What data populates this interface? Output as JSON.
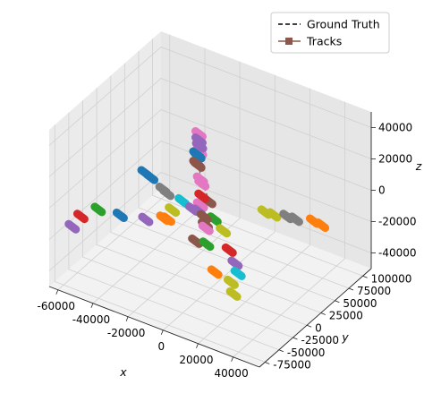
{
  "chart_data": {
    "type": "line",
    "projection": "3d",
    "xlabel": "x",
    "ylabel": "y",
    "zlabel": "z",
    "xlim": [
      -65000,
      55000
    ],
    "ylim": [
      -85000,
      115000
    ],
    "zlim": [
      -50000,
      50000
    ],
    "xticks": [
      "-60000",
      "-40000",
      "-20000",
      "0",
      "20000",
      "40000"
    ],
    "yticks": [
      "-75000",
      "-50000",
      "-25000",
      "0",
      "25000",
      "50000",
      "75000",
      "100000"
    ],
    "zticks": [
      "-40000",
      "-20000",
      "0",
      "20000",
      "40000"
    ],
    "grid": true,
    "legend": {
      "position": "top-right",
      "entries": [
        {
          "label": "Ground Truth",
          "style": "dashed",
          "color": "#000000"
        },
        {
          "label": "Tracks",
          "style": "solid-square-marker",
          "color": "#8c564b"
        }
      ]
    },
    "series": [
      {
        "color": "#e377c2",
        "x": [
          -5000,
          -5000,
          -4800
        ],
        "y": [
          -5000,
          -4000,
          -3000
        ],
        "z": [
          48000,
          36000,
          2000
        ]
      },
      {
        "color": "#9467bd",
        "x": [
          -5000,
          -5000
        ],
        "y": [
          -5000,
          -4000
        ],
        "z": [
          44000,
          40000
        ]
      },
      {
        "color": "#1f77b4",
        "x": [
          -6000,
          -5500
        ],
        "y": [
          -6000,
          -5500
        ],
        "z": [
          35000,
          34000
        ]
      },
      {
        "color": "#8c564b",
        "x": [
          -6000,
          -5500,
          -1000
        ],
        "y": [
          -6000,
          -5500,
          0
        ],
        "z": [
          29000,
          28000,
          5000
        ]
      },
      {
        "color": "#e377c2",
        "x": [
          -4500,
          -4000
        ],
        "y": [
          -4000,
          -3000
        ],
        "z": [
          19000,
          16000
        ]
      },
      {
        "color": "#1f77b4",
        "x": [
          -33000,
          -30000
        ],
        "y": [
          -14000,
          -13000
        ],
        "z": [
          14000,
          12000
        ]
      },
      {
        "color": "#7f7f7f",
        "x": [
          -24000,
          -22000
        ],
        "y": [
          -10000,
          -9000
        ],
        "z": [
          6000,
          4000
        ]
      },
      {
        "color": "#bcbd22",
        "x": [
          24000,
          28000
        ],
        "y": [
          22000,
          25000
        ],
        "z": [
          2000,
          1000
        ]
      },
      {
        "color": "#7f7f7f",
        "x": [
          34000,
          38000
        ],
        "y": [
          30000,
          33000
        ],
        "z": [
          1000,
          0
        ]
      },
      {
        "color": "#ff7f0e",
        "x": [
          46000,
          50000
        ],
        "y": [
          40000,
          42000
        ],
        "z": [
          0,
          -1500
        ]
      },
      {
        "color": "#d62728",
        "x": [
          -4000
        ],
        "y": [
          -3000
        ],
        "z": [
          8000
        ]
      },
      {
        "color": "#17becf",
        "x": [
          -14000
        ],
        "y": [
          -7000
        ],
        "z": [
          2000
        ]
      },
      {
        "color": "#9467bd",
        "x": [
          -9000,
          -6000
        ],
        "y": [
          -4000,
          -3000
        ],
        "z": [
          -2000,
          -2500
        ]
      },
      {
        "color": "#2ca02c",
        "x": [
          2000
        ],
        "y": [
          0
        ],
        "z": [
          -5000
        ]
      },
      {
        "color": "#8c564b",
        "x": [
          -3000,
          -2500
        ],
        "y": [
          -2000,
          -1500
        ],
        "z": [
          -5000,
          -10000
        ]
      },
      {
        "color": "#bcbd22",
        "x": [
          -18000
        ],
        "y": [
          -12000
        ],
        "z": [
          -4000
        ]
      },
      {
        "color": "#ff7f0e",
        "x": [
          -22000,
          -20000
        ],
        "y": [
          -15000,
          -14000
        ],
        "z": [
          -10000,
          -10000
        ]
      },
      {
        "color": "#bcbd22",
        "x": [
          6000
        ],
        "y": [
          4000
        ],
        "z": [
          -12000
        ]
      },
      {
        "color": "#9467bd",
        "x": [
          -30000
        ],
        "y": [
          -22000
        ],
        "z": [
          -12000
        ]
      },
      {
        "color": "#1f77b4",
        "x": [
          -42000
        ],
        "y": [
          -30000
        ],
        "z": [
          -12000
        ]
      },
      {
        "color": "#2ca02c",
        "x": [
          -52000
        ],
        "y": [
          -38000
        ],
        "z": [
          -10000
        ]
      },
      {
        "color": "#d62728",
        "x": [
          -60000
        ],
        "y": [
          -44000
        ],
        "z": [
          -16000
        ]
      },
      {
        "color": "#9467bd",
        "x": [
          -63000
        ],
        "y": [
          -50000
        ],
        "z": [
          -22000
        ]
      },
      {
        "color": "#8c564b",
        "x": [
          -6000
        ],
        "y": [
          -8000
        ],
        "z": [
          -20000
        ]
      },
      {
        "color": "#2ca02c",
        "x": [
          -1000
        ],
        "y": [
          -4000
        ],
        "z": [
          -21000
        ]
      },
      {
        "color": "#d62728",
        "x": [
          10000
        ],
        "y": [
          2000
        ],
        "z": [
          -22000
        ]
      },
      {
        "color": "#9467bd",
        "x": [
          14000
        ],
        "y": [
          0
        ],
        "z": [
          -28000
        ]
      },
      {
        "color": "#17becf",
        "x": [
          17000
        ],
        "y": [
          -4000
        ],
        "z": [
          -32000
        ]
      },
      {
        "color": "#ff7f0e",
        "x": [
          5000
        ],
        "y": [
          -8000
        ],
        "z": [
          -35000
        ]
      },
      {
        "color": "#bcbd22",
        "x": [
          14000,
          16000
        ],
        "y": [
          -7000,
          -9000
        ],
        "z": [
          -38000,
          -44000
        ]
      },
      {
        "color": "#e377c2",
        "x": [
          -2000
        ],
        "y": [
          -2000
        ],
        "z": [
          -12000
        ]
      }
    ]
  }
}
